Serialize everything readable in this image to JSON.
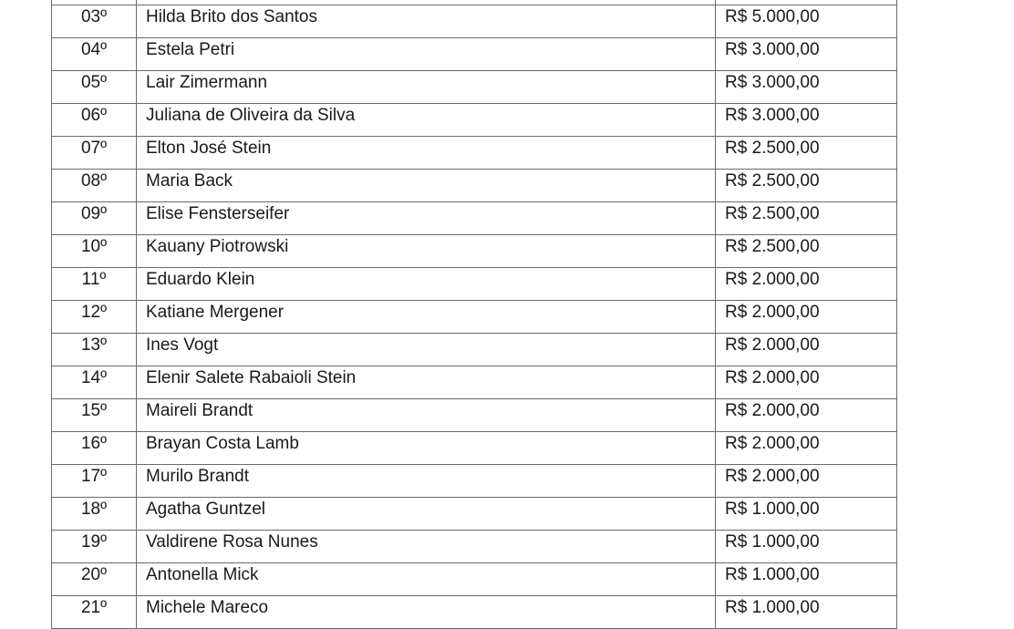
{
  "rows": [
    {
      "pos": "",
      "name": "",
      "value": ""
    },
    {
      "pos": "03º",
      "name": "Hilda Brito dos Santos",
      "value": "R$ 5.000,00"
    },
    {
      "pos": "04º",
      "name": "Estela Petri",
      "value": "R$ 3.000,00"
    },
    {
      "pos": "05º",
      "name": "Lair Zimermann",
      "value": "R$ 3.000,00"
    },
    {
      "pos": "06º",
      "name": "Juliana de Oliveira da Silva",
      "value": "R$ 3.000,00"
    },
    {
      "pos": "07º",
      "name": "Elton José Stein",
      "value": "R$ 2.500,00"
    },
    {
      "pos": "08º",
      "name": "Maria Back",
      "value": "R$ 2.500,00"
    },
    {
      "pos": "09º",
      "name": "Elise Fensterseifer",
      "value": "R$ 2.500,00"
    },
    {
      "pos": "10º",
      "name": "Kauany Piotrowski",
      "value": "R$ 2.500,00"
    },
    {
      "pos": "11º",
      "name": "Eduardo Klein",
      "value": "R$ 2.000,00"
    },
    {
      "pos": "12º",
      "name": "Katiane Mergener",
      "value": "R$ 2.000,00"
    },
    {
      "pos": "13º",
      "name": "Ines Vogt",
      "value": "R$ 2.000,00"
    },
    {
      "pos": "14º",
      "name": "Elenir Salete Rabaioli Stein",
      "value": "R$ 2.000,00"
    },
    {
      "pos": "15º",
      "name": "Maireli Brandt",
      "value": "R$ 2.000,00"
    },
    {
      "pos": "16º",
      "name": "Brayan Costa Lamb",
      "value": "R$ 2.000,00"
    },
    {
      "pos": "17º",
      "name": "Murilo Brandt",
      "value": "R$ 2.000,00"
    },
    {
      "pos": "18º",
      "name": "Agatha Guntzel",
      "value": "R$ 1.000,00"
    },
    {
      "pos": "19º",
      "name": "Valdirene Rosa Nunes",
      "value": "R$ 1.000,00"
    },
    {
      "pos": "20º",
      "name": "Antonella Mick",
      "value": "R$ 1.000,00"
    },
    {
      "pos": "21º",
      "name": "Michele Mareco",
      "value": "R$ 1.000,00"
    }
  ]
}
